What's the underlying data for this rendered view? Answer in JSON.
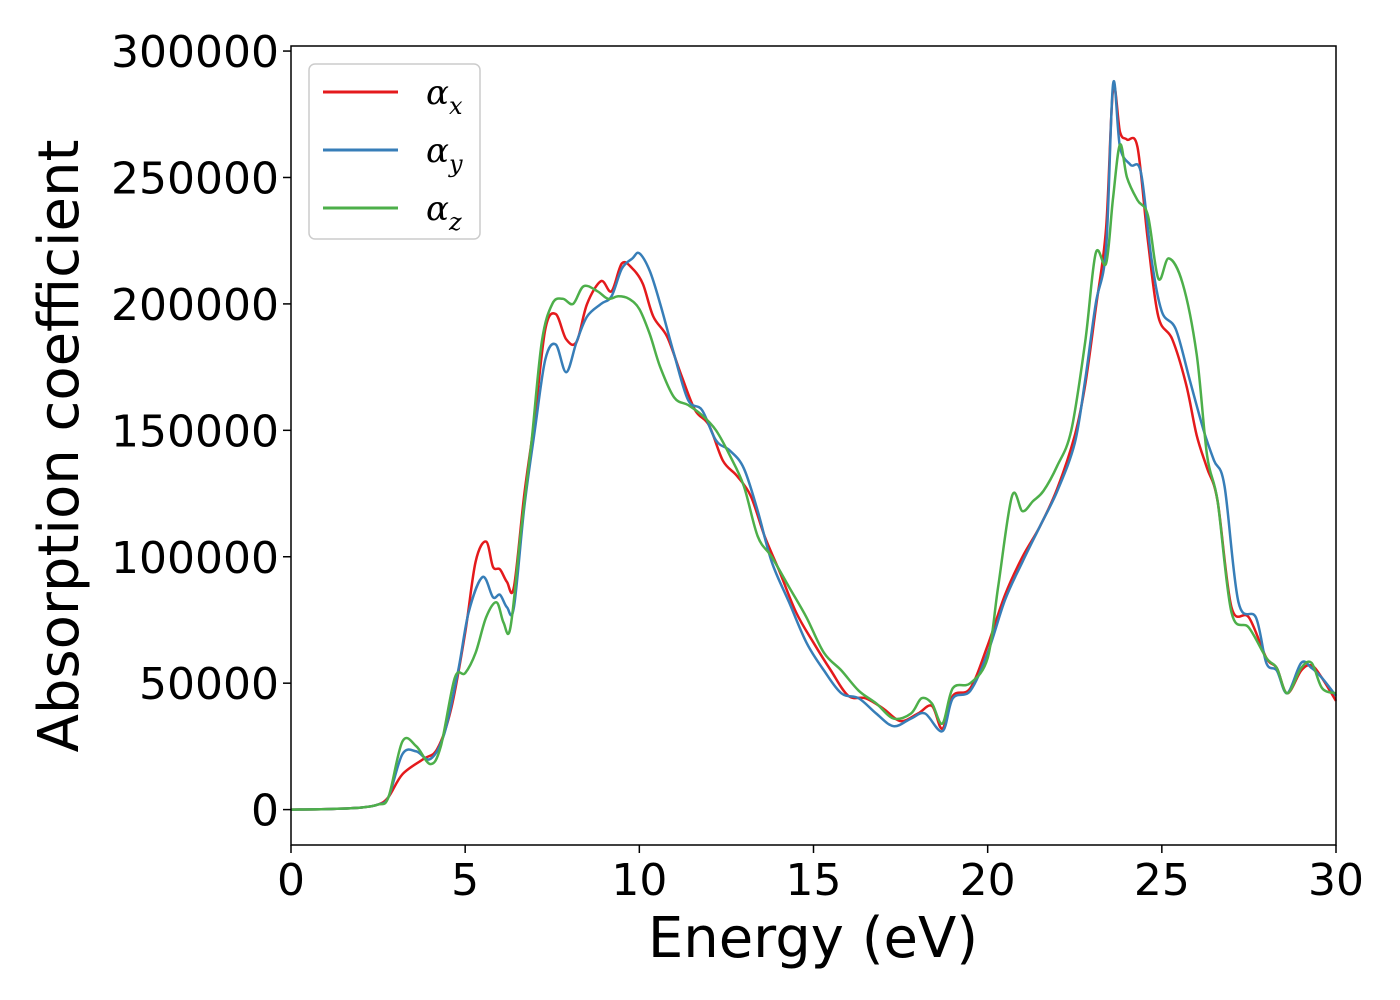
{
  "chart_data": {
    "type": "line",
    "xlabel": "Energy (eV)",
    "ylabel": "Absorption coefficient",
    "xlim": [
      0,
      30
    ],
    "ylim": [
      -14000,
      302000
    ],
    "x_ticks": [
      0,
      5,
      10,
      15,
      20,
      25,
      30
    ],
    "y_ticks": [
      0,
      50000,
      100000,
      150000,
      200000,
      250000,
      300000
    ],
    "grid": false,
    "legend_position": "top-left",
    "series": [
      {
        "name": "α_x",
        "symbol": "α",
        "subscript": "x",
        "color": "#e41a1c",
        "x": [
          0,
          1,
          2,
          2.5,
          2.8,
          3.2,
          3.8,
          4.2,
          4.6,
          5.0,
          5.3,
          5.6,
          5.8,
          6.0,
          6.2,
          6.4,
          6.7,
          7.0,
          7.3,
          7.6,
          7.9,
          8.2,
          8.5,
          8.9,
          9.2,
          9.5,
          9.8,
          10.1,
          10.4,
          10.8,
          11.2,
          11.6,
          12.0,
          12.4,
          12.8,
          13.2,
          13.6,
          14.0,
          14.5,
          15.0,
          15.5,
          16.0,
          16.5,
          17.0,
          17.5,
          18.0,
          18.4,
          18.7,
          19.0,
          19.5,
          20.0,
          20.5,
          21.0,
          21.5,
          22.0,
          22.5,
          22.8,
          23.1,
          23.4,
          23.6,
          23.8,
          24.0,
          24.3,
          24.6,
          24.9,
          25.3,
          25.7,
          26.0,
          26.3,
          26.6,
          27.0,
          27.5,
          28.0,
          28.3,
          28.6,
          29.0,
          29.3,
          29.6,
          30.0
        ],
        "y": [
          0,
          200,
          800,
          2000,
          5000,
          14000,
          20000,
          24000,
          40000,
          70000,
          98000,
          106000,
          96000,
          95000,
          90000,
          88000,
          125000,
          155000,
          190000,
          196000,
          186000,
          185000,
          200000,
          209000,
          205000,
          216000,
          214000,
          208000,
          195000,
          187000,
          172000,
          158000,
          152000,
          138000,
          132000,
          124000,
          108000,
          95000,
          78000,
          66000,
          55000,
          45000,
          44000,
          40000,
          35000,
          38000,
          41000,
          32000,
          45000,
          48000,
          65000,
          85000,
          100000,
          112000,
          127000,
          148000,
          168000,
          198000,
          230000,
          285000,
          268000,
          265000,
          262000,
          225000,
          195000,
          186000,
          168000,
          148000,
          135000,
          122000,
          80000,
          76000,
          60000,
          56000,
          46000,
          55000,
          57000,
          52000,
          43000
        ]
      },
      {
        "name": "α_y",
        "symbol": "α",
        "subscript": "y",
        "color": "#377eb8",
        "x": [
          0,
          1,
          2,
          2.5,
          2.8,
          3.2,
          3.6,
          4.0,
          4.4,
          4.8,
          5.1,
          5.5,
          5.8,
          6.0,
          6.2,
          6.4,
          6.7,
          7.0,
          7.3,
          7.6,
          7.9,
          8.2,
          8.5,
          8.9,
          9.2,
          9.5,
          9.8,
          10.0,
          10.3,
          10.6,
          11.0,
          11.4,
          11.8,
          12.2,
          12.6,
          13.0,
          13.4,
          13.8,
          14.3,
          14.8,
          15.3,
          15.8,
          16.3,
          16.8,
          17.3,
          17.8,
          18.2,
          18.7,
          19.0,
          19.5,
          20.0,
          20.5,
          21.0,
          21.5,
          22.0,
          22.5,
          22.8,
          23.1,
          23.4,
          23.6,
          23.8,
          24.1,
          24.4,
          24.7,
          25.0,
          25.4,
          25.8,
          26.2,
          26.5,
          26.8,
          27.2,
          27.7,
          28.0,
          28.3,
          28.6,
          29.0,
          29.3,
          29.6,
          30.0
        ],
        "y": [
          0,
          200,
          800,
          2000,
          5000,
          22000,
          23000,
          20000,
          30000,
          55000,
          78000,
          92000,
          84000,
          85000,
          80000,
          80000,
          120000,
          150000,
          178000,
          184000,
          173000,
          185000,
          195000,
          200000,
          203000,
          214000,
          218000,
          220000,
          213000,
          200000,
          180000,
          162000,
          158000,
          146000,
          142000,
          135000,
          118000,
          98000,
          82000,
          66000,
          55000,
          46000,
          44000,
          38000,
          33000,
          36000,
          38000,
          31000,
          44000,
          47000,
          62000,
          83000,
          98000,
          112000,
          126000,
          145000,
          170000,
          200000,
          222000,
          287000,
          262000,
          255000,
          252000,
          218000,
          197000,
          190000,
          170000,
          150000,
          138000,
          128000,
          82000,
          76000,
          58000,
          55000,
          46000,
          58000,
          56000,
          52000,
          45000
        ]
      },
      {
        "name": "α_z",
        "symbol": "α",
        "subscript": "z",
        "color": "#4daf4a",
        "x": [
          0,
          1,
          2,
          2.5,
          2.8,
          3.2,
          3.6,
          4.0,
          4.3,
          4.7,
          5.0,
          5.3,
          5.6,
          5.9,
          6.1,
          6.3,
          6.6,
          6.9,
          7.2,
          7.5,
          7.8,
          8.1,
          8.4,
          8.8,
          9.1,
          9.4,
          9.7,
          10.0,
          10.3,
          10.6,
          11.0,
          11.4,
          11.8,
          12.2,
          12.6,
          13.0,
          13.4,
          13.8,
          14.3,
          14.8,
          15.3,
          15.8,
          16.3,
          16.8,
          17.3,
          17.8,
          18.1,
          18.4,
          18.7,
          19.0,
          19.5,
          20.0,
          20.3,
          20.7,
          21.0,
          21.3,
          21.6,
          22.0,
          22.4,
          22.8,
          23.1,
          23.4,
          23.6,
          23.8,
          24.0,
          24.3,
          24.6,
          24.9,
          25.2,
          25.6,
          26.0,
          26.3,
          26.6,
          27.0,
          27.5,
          28.0,
          28.3,
          28.6,
          29.0,
          29.3,
          29.6,
          30.0
        ],
        "y": [
          0,
          200,
          800,
          2000,
          5000,
          27000,
          25000,
          18000,
          25000,
          52000,
          54000,
          62000,
          76000,
          82000,
          74000,
          72000,
          110000,
          145000,
          185000,
          200000,
          202000,
          200000,
          207000,
          205000,
          202000,
          203000,
          202000,
          198000,
          188000,
          175000,
          163000,
          160000,
          156000,
          150000,
          140000,
          128000,
          108000,
          100000,
          88000,
          76000,
          62000,
          55000,
          47000,
          42000,
          36000,
          38000,
          44000,
          42000,
          34000,
          48000,
          50000,
          60000,
          88000,
          124000,
          118000,
          122000,
          126000,
          136000,
          150000,
          185000,
          220000,
          216000,
          242000,
          263000,
          250000,
          241000,
          235000,
          210000,
          218000,
          208000,
          180000,
          140000,
          122000,
          78000,
          72000,
          60000,
          56000,
          46000,
          56000,
          58000,
          48000,
          46000
        ]
      }
    ]
  }
}
